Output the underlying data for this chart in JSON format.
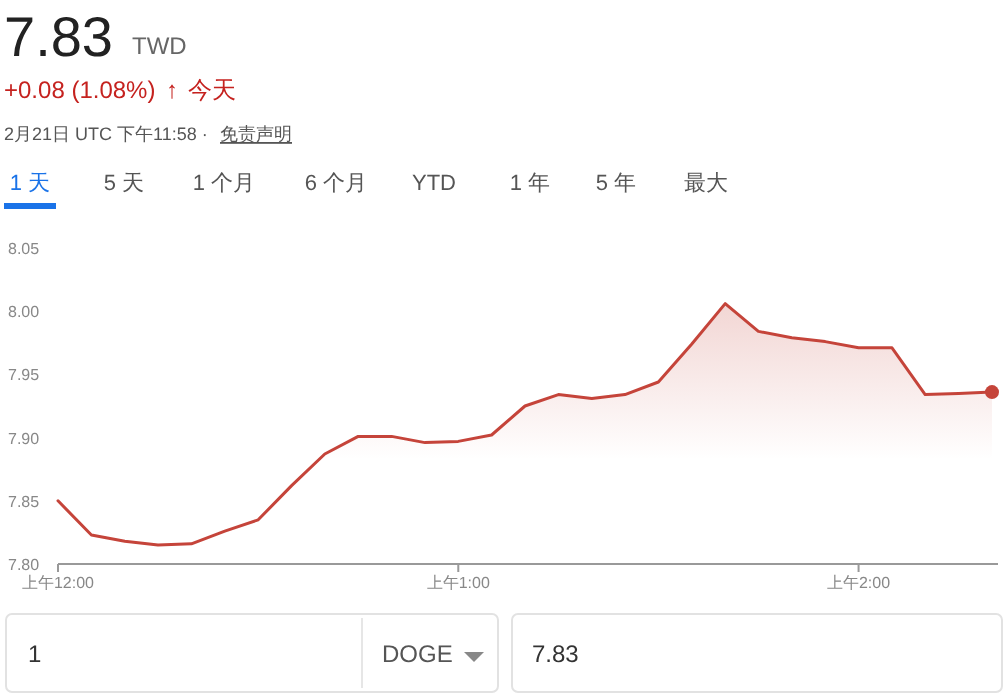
{
  "chart_data": {
    "type": "area",
    "title": "7.83",
    "annotations": [
      "TWD",
      "+0.08 (1.08%)",
      "↑",
      "今天",
      "2月21日 UTC 下午11:58 ·",
      "免责声明",
      "1 天",
      "5 天",
      "1 个月",
      "6 个月",
      "YTD",
      "1 年",
      "5 年",
      "最大",
      "1",
      "DOGE",
      "7.83"
    ],
    "series": [
      {
        "color": "#c5443a",
        "values": [
          7.85,
          7.823,
          7.818,
          7.815,
          7.816,
          7.826,
          7.835,
          7.862,
          7.887,
          7.901,
          7.901,
          7.896,
          7.897,
          7.902,
          7.925,
          7.934,
          7.931,
          7.934,
          7.944,
          7.974,
          8.006,
          7.984,
          7.979,
          7.976,
          7.971,
          7.971,
          7.934,
          7.935,
          7.936
        ]
      }
    ],
    "categories": [
      "上午12:00",
      null,
      null,
      null,
      null,
      null,
      null,
      null,
      null,
      null,
      null,
      null,
      "上午1:00",
      null,
      null,
      null,
      null,
      null,
      null,
      null,
      null,
      null,
      null,
      null,
      "上午2:00",
      null,
      null,
      null,
      null
    ],
    "ylim": [
      7.8,
      8.05
    ],
    "yticks": [
      {
        "value": 7.8,
        "label": "7.80"
      },
      {
        "value": 7.85,
        "label": "7.85"
      },
      {
        "value": 7.9,
        "label": "7.90"
      },
      {
        "value": 7.95,
        "label": "7.95"
      },
      {
        "value": 8.0,
        "label": "8.00"
      },
      {
        "value": 8.05,
        "label": "8.05"
      }
    ]
  }
}
